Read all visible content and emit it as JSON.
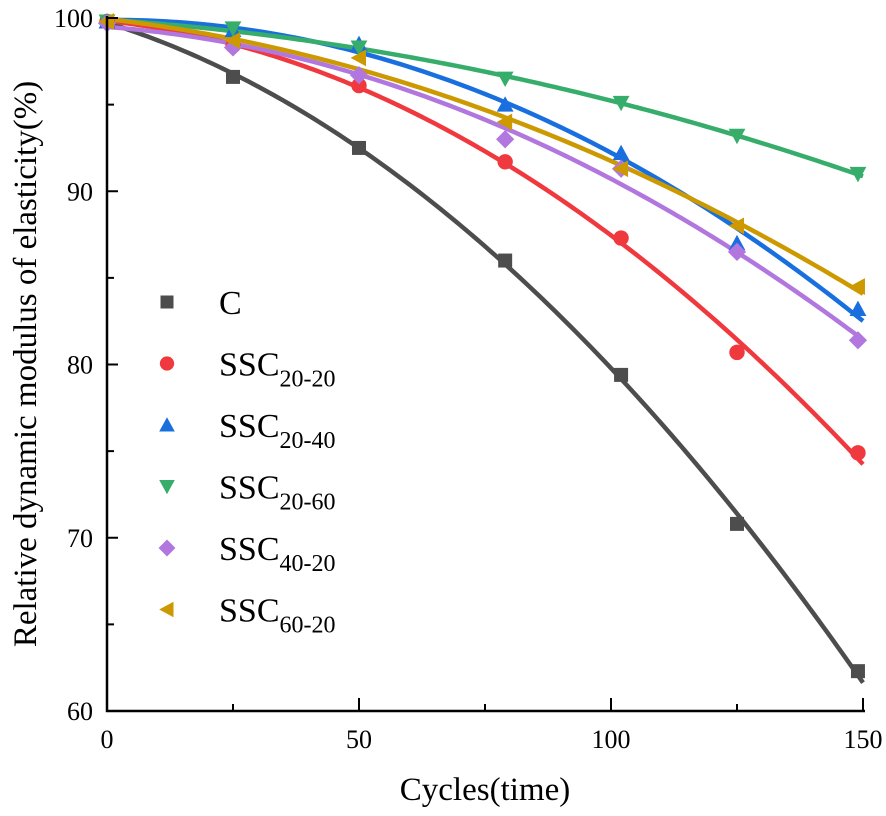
{
  "chart_data": {
    "type": "line",
    "title": "",
    "xlabel": "Cycles(time)",
    "ylabel": "Relative dynamic modulus of elasticity(%)",
    "xlim": [
      0,
      150
    ],
    "ylim": [
      60,
      100
    ],
    "x_major_ticks": [
      0,
      50,
      100,
      150
    ],
    "x_minor_ticks": [
      25,
      75,
      125
    ],
    "y_major_ticks": [
      60,
      70,
      80,
      90,
      100
    ],
    "y_minor_ticks": [
      65,
      75,
      85,
      95
    ],
    "x_tick_labels": [
      "0",
      "50",
      "100",
      "150"
    ],
    "y_tick_labels": [
      "60",
      "70",
      "80",
      "90",
      "100"
    ],
    "grid": false,
    "legend_position": "center-left",
    "fit": "polynomial-smooth",
    "series": [
      {
        "name": "C",
        "legend_main": "C",
        "legend_sub": "",
        "marker": "square",
        "color": "#4d4d4d",
        "x": [
          0,
          25,
          50,
          79,
          102,
          125,
          149
        ],
        "y": [
          99.8,
          96.6,
          92.5,
          86.0,
          79.4,
          70.8,
          62.3
        ]
      },
      {
        "name": "SSC20-20",
        "legend_main": "SSC",
        "legend_sub": "20-20",
        "marker": "circle",
        "color": "#f0393e",
        "x": [
          0,
          25,
          50,
          79,
          102,
          125,
          149
        ],
        "y": [
          99.8,
          98.4,
          96.1,
          91.7,
          87.3,
          80.7,
          74.9
        ]
      },
      {
        "name": "SSC20-40",
        "legend_main": "SSC",
        "legend_sub": "20-40",
        "marker": "triangle-up",
        "color": "#1a6fdf",
        "x": [
          0,
          25,
          50,
          79,
          102,
          125,
          149
        ],
        "y": [
          99.8,
          99.3,
          98.5,
          95.0,
          92.2,
          87.0,
          83.2
        ]
      },
      {
        "name": "SSC20-60",
        "legend_main": "SSC",
        "legend_sub": "20-60",
        "marker": "triangle-down",
        "color": "#37ad6b",
        "x": [
          0,
          25,
          50,
          79,
          102,
          125,
          149
        ],
        "y": [
          99.8,
          99.4,
          98.3,
          96.5,
          95.1,
          93.2,
          91.0
        ]
      },
      {
        "name": "SSC40-20",
        "legend_main": "SSC",
        "legend_sub": "40-20",
        "marker": "diamond",
        "color": "#b177de",
        "x": [
          0,
          25,
          50,
          79,
          102,
          125,
          149
        ],
        "y": [
          99.7,
          98.3,
          96.7,
          93.0,
          91.3,
          86.5,
          81.4
        ]
      },
      {
        "name": "SSC60-20",
        "legend_main": "SSC",
        "legend_sub": "60-20",
        "marker": "triangle-left",
        "color": "#cc9900",
        "x": [
          0,
          25,
          50,
          79,
          102,
          125,
          149
        ],
        "y": [
          99.8,
          98.7,
          97.7,
          94.0,
          91.3,
          88.0,
          84.5
        ]
      }
    ]
  }
}
